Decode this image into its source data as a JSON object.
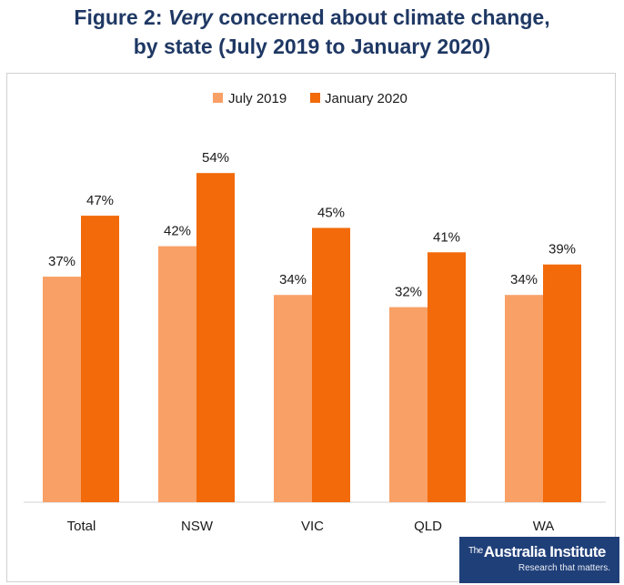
{
  "title": {
    "prefix": "Figure 2: ",
    "emphasis": "Very",
    "rest": " concerned about climate change,",
    "line2": "by state (July 2019 to January 2020)"
  },
  "logo": {
    "the": "The",
    "name": "Australia Institute",
    "tagline": "Research that matters."
  },
  "chart_data": {
    "type": "bar",
    "categories": [
      "Total",
      "NSW",
      "VIC",
      "QLD",
      "WA"
    ],
    "series": [
      {
        "name": "July 2019",
        "color": "#f9a066",
        "values": [
          37,
          42,
          34,
          32,
          34
        ]
      },
      {
        "name": "January 2020",
        "color": "#f26a09",
        "values": [
          47,
          54,
          45,
          41,
          39
        ]
      }
    ],
    "value_suffix": "%",
    "ylim": [
      0,
      65
    ],
    "grid": false,
    "legend": "top-center",
    "xlabel": "",
    "ylabel": ""
  }
}
